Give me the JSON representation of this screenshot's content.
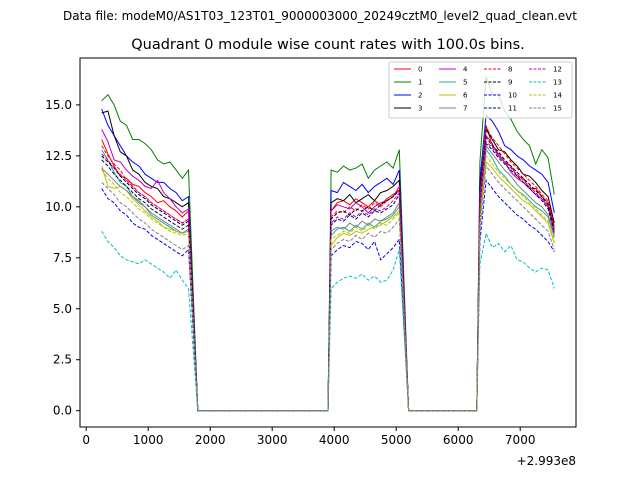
{
  "chart_data": {
    "type": "line",
    "suptitle": "Data file: modeM0/AS1T03_123T01_9000003000_20249cztM0_level2_quad_clean.evt",
    "title": "Quadrant 0 module wise count rates with 100.0s bins.",
    "xlabel": "",
    "ylabel": "",
    "x_offset_label": "+2.993e8",
    "xlim": [
      -100,
      7900
    ],
    "ylim": [
      -0.8,
      17.3
    ],
    "xticks": [
      0,
      1000,
      2000,
      3000,
      4000,
      5000,
      6000,
      7000
    ],
    "yticks": [
      0.0,
      2.5,
      5.0,
      7.5,
      10.0,
      12.5,
      15.0
    ],
    "xtick_labels": [
      "0",
      "1000",
      "2000",
      "3000",
      "4000",
      "5000",
      "6000",
      "7000"
    ],
    "ytick_labels": [
      "0.0",
      "2.5",
      "5.0",
      "7.5",
      "10.0",
      "12.5",
      "15.0"
    ],
    "grid": false,
    "legend_position": "top-right",
    "segments": [
      {
        "start": 250,
        "end": 1650,
        "zero_before": 0
      },
      {
        "start": 3950,
        "end": 5050
      },
      {
        "start": 6350,
        "end": 7550
      }
    ],
    "series": [
      {
        "name": "0",
        "color": "#ff0000",
        "dash": false,
        "seg_values": [
          [
            13.3,
            12.6,
            12.0,
            11.5,
            11.4,
            11.1,
            11.0,
            10.7,
            10.5,
            10.2,
            10.3,
            10.0,
            9.8,
            9.5,
            9.8
          ],
          [
            9.8,
            10.2,
            10.3,
            10.1,
            10.4,
            10.2,
            10.0,
            10.3,
            10.1,
            10.4,
            10.6,
            10.8
          ],
          [
            10.5,
            14.0,
            13.0,
            12.6,
            12.2,
            12.0,
            11.5,
            11.4,
            10.9,
            10.9,
            10.5,
            10.2,
            9.0
          ]
        ]
      },
      {
        "name": "1",
        "color": "#008000",
        "dash": false,
        "seg_values": [
          [
            15.2,
            15.5,
            15.0,
            14.2,
            14.0,
            13.3,
            13.3,
            13.1,
            12.8,
            12.3,
            12.1,
            12.2,
            11.8,
            11.4,
            11.8
          ],
          [
            11.8,
            11.7,
            12.0,
            11.8,
            11.9,
            12.1,
            11.4,
            11.8,
            12.0,
            12.2,
            11.9,
            12.8
          ],
          [
            12.2,
            16.4,
            15.5,
            15.5,
            14.7,
            14.3,
            13.7,
            13.3,
            13.0,
            12.1,
            12.8,
            12.4,
            10.6
          ]
        ]
      },
      {
        "name": "2",
        "color": "#0000ff",
        "dash": false,
        "seg_values": [
          [
            14.8,
            14.0,
            13.5,
            13.0,
            12.5,
            12.2,
            12.0,
            11.6,
            11.4,
            11.2,
            11.2,
            10.9,
            10.7,
            10.3,
            10.5
          ],
          [
            10.8,
            10.7,
            11.2,
            11.0,
            10.8,
            11.1,
            10.7,
            11.0,
            11.2,
            11.4,
            11.1,
            11.8
          ],
          [
            11.3,
            14.5,
            14.2,
            13.7,
            13.0,
            12.8,
            12.5,
            12.3,
            12.0,
            11.8,
            11.6,
            11.2,
            9.7
          ]
        ]
      },
      {
        "name": "3",
        "color": "#000000",
        "dash": false,
        "seg_values": [
          [
            14.6,
            14.7,
            13.5,
            12.7,
            12.5,
            11.8,
            11.6,
            11.2,
            11.0,
            10.9,
            10.5,
            10.4,
            10.2,
            10.0,
            10.2
          ],
          [
            10.2,
            10.4,
            10.3,
            10.6,
            10.2,
            10.4,
            10.6,
            10.3,
            10.7,
            10.8,
            11.0,
            11.3
          ],
          [
            10.9,
            13.8,
            13.3,
            12.8,
            12.7,
            12.3,
            12.0,
            11.6,
            11.5,
            11.2,
            10.8,
            10.5,
            9.2
          ]
        ]
      },
      {
        "name": "4",
        "color": "#c000c0",
        "dash": false,
        "seg_values": [
          [
            13.8,
            13.2,
            12.3,
            12.2,
            11.8,
            11.5,
            11.3,
            11.0,
            10.9,
            11.3,
            10.7,
            10.4,
            10.0,
            9.7,
            9.9
          ],
          [
            9.8,
            10.1,
            10.0,
            9.9,
            10.2,
            10.0,
            9.7,
            10.0,
            10.2,
            10.3,
            10.5,
            11.0
          ],
          [
            10.6,
            13.5,
            13.1,
            12.5,
            12.2,
            11.7,
            11.4,
            11.2,
            10.9,
            10.6,
            10.4,
            10.0,
            8.7
          ]
        ]
      },
      {
        "name": "5",
        "color": "#20b090",
        "dash": false,
        "seg_values": [
          [
            12.8,
            12.3,
            11.7,
            11.2,
            11.0,
            10.5,
            10.2,
            10.0,
            9.6,
            9.4,
            9.2,
            9.0,
            8.8,
            8.7,
            8.9
          ],
          [
            8.6,
            8.9,
            9.0,
            8.8,
            9.1,
            8.9,
            9.2,
            9.0,
            9.3,
            9.4,
            9.6,
            10.0
          ],
          [
            9.6,
            12.8,
            12.4,
            11.8,
            11.5,
            11.1,
            10.8,
            10.6,
            10.3,
            10.0,
            9.8,
            9.5,
            8.5
          ]
        ]
      },
      {
        "name": "6",
        "color": "#c0c000",
        "dash": false,
        "seg_values": [
          [
            12.0,
            11.0,
            10.9,
            11.0,
            10.8,
            10.4,
            10.1,
            9.8,
            9.5,
            9.3,
            9.0,
            8.9,
            8.8,
            8.7,
            8.8
          ],
          [
            8.1,
            8.5,
            8.7,
            8.6,
            8.8,
            8.7,
            8.9,
            9.0,
            9.1,
            9.3,
            9.5,
            9.8
          ],
          [
            9.3,
            12.2,
            11.9,
            11.5,
            11.2,
            10.9,
            10.6,
            10.3,
            10.1,
            9.8,
            9.5,
            9.2,
            8.2
          ]
        ]
      },
      {
        "name": "7",
        "color": "#808080",
        "dash": false,
        "seg_values": [
          [
            11.9,
            11.6,
            11.3,
            11.0,
            10.8,
            10.5,
            10.3,
            10.0,
            9.7,
            9.5,
            9.3,
            9.1,
            8.9,
            8.7,
            8.9
          ],
          [
            8.8,
            9.0,
            8.9,
            9.2,
            9.0,
            9.3,
            9.1,
            9.4,
            9.3,
            9.5,
            9.7,
            10.2
          ],
          [
            9.8,
            13.0,
            12.6,
            12.2,
            11.8,
            11.5,
            11.1,
            10.8,
            10.5,
            10.2,
            10.0,
            9.6,
            8.6
          ]
        ]
      },
      {
        "name": "8",
        "color": "#ff0000",
        "dash": true,
        "seg_values": [
          [
            13.0,
            12.5,
            12.1,
            11.8,
            11.3,
            11.0,
            10.7,
            10.5,
            10.2,
            10.0,
            9.8,
            9.6,
            9.4,
            9.2,
            9.4
          ],
          [
            9.5,
            9.8,
            9.7,
            10.0,
            9.8,
            10.1,
            9.9,
            10.2,
            10.0,
            10.3,
            10.5,
            10.9
          ],
          [
            10.4,
            13.9,
            13.4,
            13.0,
            12.6,
            12.2,
            11.9,
            11.6,
            11.3,
            11.0,
            10.6,
            10.3,
            9.0
          ]
        ]
      },
      {
        "name": "9",
        "color": "#000000",
        "dash": true,
        "seg_values": [
          [
            12.5,
            12.2,
            11.9,
            11.5,
            11.2,
            10.9,
            10.6,
            10.4,
            10.1,
            9.9,
            9.7,
            9.5,
            9.3,
            9.1,
            9.3
          ],
          [
            9.4,
            9.7,
            9.8,
            9.6,
            9.9,
            9.8,
            10.0,
            9.8,
            10.1,
            10.3,
            10.5,
            10.8
          ],
          [
            10.2,
            13.4,
            13.0,
            12.7,
            12.3,
            12.0,
            11.7,
            11.4,
            11.1,
            10.8,
            10.5,
            10.1,
            8.9
          ]
        ]
      },
      {
        "name": "10",
        "color": "#0000ff",
        "dash": true,
        "seg_values": [
          [
            10.9,
            10.4,
            10.2,
            9.8,
            9.6,
            9.2,
            9.0,
            8.9,
            8.6,
            8.4,
            8.2,
            8.0,
            7.8,
            7.6,
            7.9
          ],
          [
            7.6,
            7.9,
            8.1,
            8.0,
            8.3,
            8.2,
            7.9,
            8.3,
            7.4,
            7.7,
            8.0,
            8.4
          ],
          [
            8.3,
            11.3,
            10.9,
            10.5,
            10.2,
            9.9,
            9.6,
            9.4,
            9.1,
            8.9,
            8.6,
            8.3,
            7.8
          ]
        ]
      },
      {
        "name": "11",
        "color": "#000080",
        "dash": true,
        "seg_values": [
          [
            12.3,
            12.0,
            11.6,
            11.3,
            11.0,
            10.7,
            10.4,
            10.2,
            9.9,
            9.7,
            9.5,
            9.3,
            9.1,
            8.9,
            9.1
          ],
          [
            9.1,
            9.4,
            9.3,
            9.6,
            9.4,
            9.7,
            9.5,
            9.8,
            9.7,
            9.9,
            10.1,
            10.6
          ],
          [
            10.0,
            13.1,
            12.8,
            12.4,
            12.1,
            11.8,
            11.5,
            11.2,
            10.9,
            10.6,
            10.3,
            9.9,
            8.7
          ]
        ]
      },
      {
        "name": "12",
        "color": "#c000c0",
        "dash": true,
        "seg_values": [
          [
            12.6,
            12.3,
            11.9,
            11.6,
            11.3,
            11.0,
            10.7,
            10.5,
            10.2,
            10.0,
            9.8,
            9.6,
            9.4,
            9.2,
            9.4
          ],
          [
            9.2,
            9.5,
            9.4,
            9.7,
            9.5,
            9.8,
            9.6,
            9.9,
            9.8,
            10.0,
            10.3,
            10.7
          ],
          [
            10.1,
            13.2,
            12.9,
            12.5,
            12.2,
            11.9,
            11.6,
            11.3,
            11.0,
            10.7,
            10.4,
            10.0,
            8.8
          ]
        ]
      },
      {
        "name": "13",
        "color": "#00c0c0",
        "dash": true,
        "seg_values": [
          [
            8.8,
            8.3,
            8.0,
            7.6,
            7.4,
            7.3,
            7.2,
            7.4,
            7.2,
            7.0,
            6.8,
            6.5,
            6.9,
            6.4,
            6.0
          ],
          [
            6.0,
            6.3,
            6.5,
            6.6,
            6.5,
            6.7,
            6.4,
            6.6,
            6.3,
            6.4,
            6.9,
            7.9
          ],
          [
            7.2,
            8.7,
            8.0,
            8.2,
            7.8,
            8.1,
            7.4,
            7.3,
            7.0,
            6.8,
            7.0,
            6.9,
            6.0
          ]
        ]
      },
      {
        "name": "14",
        "color": "#c0c000",
        "dash": true,
        "seg_values": [
          [
            11.8,
            11.4,
            11.1,
            10.7,
            10.5,
            10.2,
            9.9,
            9.7,
            9.4,
            9.2,
            9.0,
            8.8,
            8.7,
            8.6,
            8.7
          ],
          [
            8.4,
            8.6,
            8.8,
            8.7,
            9.0,
            8.8,
            9.1,
            8.9,
            9.2,
            9.1,
            9.4,
            9.7
          ],
          [
            9.2,
            12.5,
            12.1,
            11.7,
            11.4,
            11.1,
            10.8,
            10.5,
            10.2,
            9.9,
            9.6,
            9.3,
            8.3
          ]
        ]
      },
      {
        "name": "15",
        "color": "#808080",
        "dash": true,
        "seg_values": [
          [
            11.2,
            10.9,
            10.6,
            10.2,
            10.0,
            9.7,
            9.4,
            9.2,
            8.9,
            8.7,
            8.5,
            8.3,
            8.1,
            7.9,
            8.1
          ],
          [
            7.9,
            8.2,
            8.4,
            8.3,
            8.6,
            8.4,
            8.7,
            8.5,
            8.8,
            8.7,
            9.0,
            9.4
          ],
          [
            8.9,
            12.0,
            11.6,
            11.2,
            10.9,
            10.6,
            10.3,
            10.0,
            9.7,
            9.4,
            9.1,
            8.8,
            7.9
          ]
        ]
      }
    ]
  }
}
